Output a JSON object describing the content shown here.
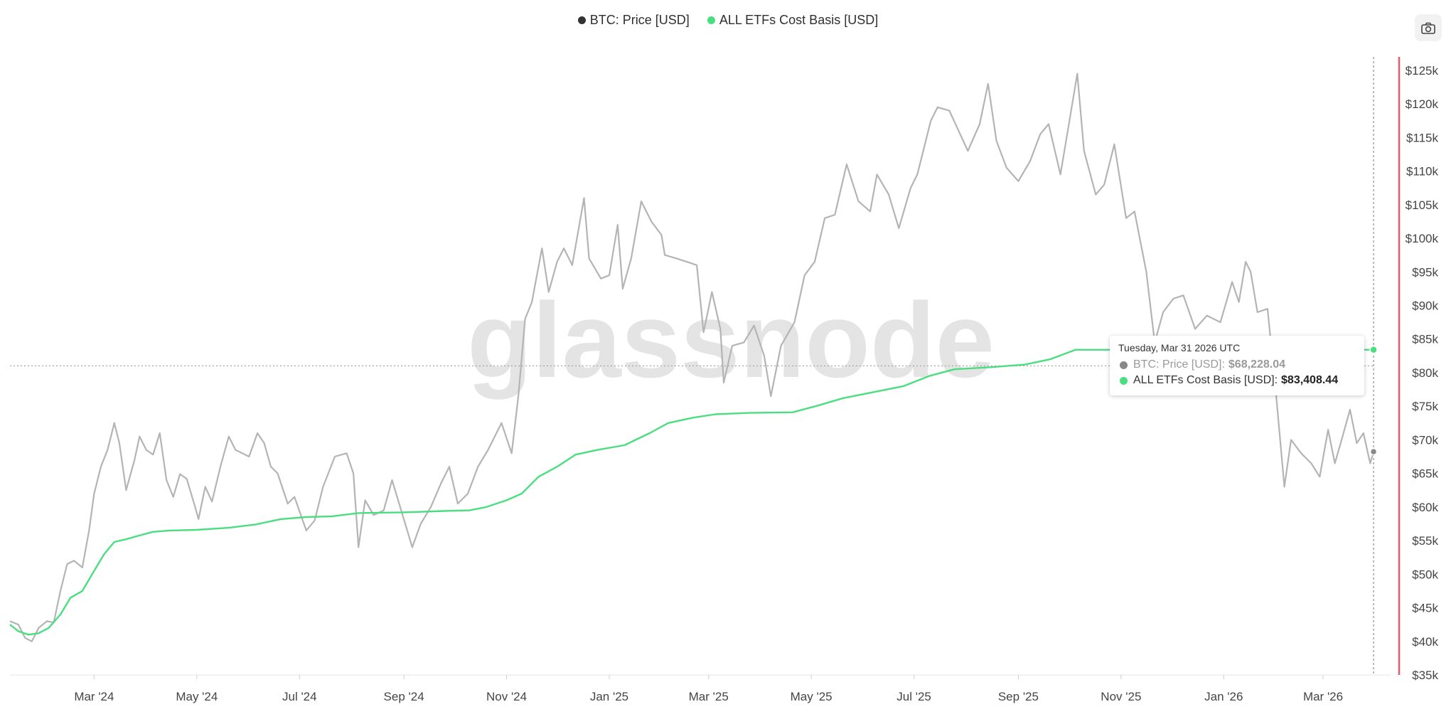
{
  "legend": [
    {
      "label": "BTC: Price [USD]",
      "color": "#333333"
    },
    {
      "label": "ALL ETFs Cost Basis [USD]",
      "color": "#4ade80"
    }
  ],
  "watermark": "glassnode",
  "camera_icon": "camera-icon",
  "tooltip": {
    "date": "Tuesday, Mar 31 2026 UTC",
    "rows": [
      {
        "label": "BTC: Price [USD]:",
        "value": "$68,228.04",
        "color": "#888888"
      },
      {
        "label": "ALL ETFs Cost Basis [USD]:",
        "value": "$83,408.44",
        "color": "#4ade80"
      }
    ]
  },
  "colors": {
    "price": "#b4b4b4",
    "cost_basis": "#4ade80",
    "crosshair": "#e8596e"
  },
  "chart_data": {
    "type": "line",
    "x_range": [
      "2024-01-11",
      "2026-04-08"
    ],
    "x_ticks": [
      {
        "date": "2024-03-01",
        "label": "Mar '24"
      },
      {
        "date": "2024-05-01",
        "label": "May '24"
      },
      {
        "date": "2024-07-01",
        "label": "Jul '24"
      },
      {
        "date": "2024-09-01",
        "label": "Sep '24"
      },
      {
        "date": "2024-11-01",
        "label": "Nov '24"
      },
      {
        "date": "2025-01-01",
        "label": "Jan '25"
      },
      {
        "date": "2025-03-01",
        "label": "Mar '25"
      },
      {
        "date": "2025-05-01",
        "label": "May '25"
      },
      {
        "date": "2025-07-01",
        "label": "Jul '25"
      },
      {
        "date": "2025-09-01",
        "label": "Sep '25"
      },
      {
        "date": "2025-11-01",
        "label": "Nov '25"
      },
      {
        "date": "2026-01-01",
        "label": "Jan '26"
      },
      {
        "date": "2026-03-01",
        "label": "Mar '26"
      }
    ],
    "ylim": [
      35000,
      127000
    ],
    "y_ticks": [
      {
        "value": 35000,
        "label": "$35k"
      },
      {
        "value": 40000,
        "label": "$40k"
      },
      {
        "value": 45000,
        "label": "$45k"
      },
      {
        "value": 50000,
        "label": "$50k"
      },
      {
        "value": 55000,
        "label": "$55k"
      },
      {
        "value": 60000,
        "label": "$60k"
      },
      {
        "value": 65000,
        "label": "$65k"
      },
      {
        "value": 70000,
        "label": "$70k"
      },
      {
        "value": 75000,
        "label": "$75k"
      },
      {
        "value": 80000,
        "label": "$80k"
      },
      {
        "value": 85000,
        "label": "$85k"
      },
      {
        "value": 90000,
        "label": "$90k"
      },
      {
        "value": 95000,
        "label": "$95k"
      },
      {
        "value": 100000,
        "label": "$100k"
      },
      {
        "value": 105000,
        "label": "$105k"
      },
      {
        "value": 110000,
        "label": "$110k"
      },
      {
        "value": 115000,
        "label": "$115k"
      },
      {
        "value": 120000,
        "label": "$120k"
      },
      {
        "value": 125000,
        "label": "$125k"
      }
    ],
    "crosshair_date": "2026-03-31",
    "series": [
      {
        "name": "BTC: Price [USD]",
        "points": [
          [
            "2024-01-11",
            43000
          ],
          [
            "2024-01-16",
            42500
          ],
          [
            "2024-01-20",
            40500
          ],
          [
            "2024-01-24",
            40000
          ],
          [
            "2024-01-28",
            42000
          ],
          [
            "2024-02-02",
            43000
          ],
          [
            "2024-02-06",
            42800
          ],
          [
            "2024-02-10",
            47500
          ],
          [
            "2024-02-14",
            51500
          ],
          [
            "2024-02-18",
            52000
          ],
          [
            "2024-02-23",
            51000
          ],
          [
            "2024-02-27",
            56500
          ],
          [
            "2024-03-01",
            62000
          ],
          [
            "2024-03-05",
            66000
          ],
          [
            "2024-03-09",
            68500
          ],
          [
            "2024-03-13",
            72500
          ],
          [
            "2024-03-16",
            69500
          ],
          [
            "2024-03-20",
            62500
          ],
          [
            "2024-03-25",
            67000
          ],
          [
            "2024-03-28",
            70500
          ],
          [
            "2024-04-01",
            68500
          ],
          [
            "2024-04-05",
            67800
          ],
          [
            "2024-04-09",
            71000
          ],
          [
            "2024-04-13",
            64000
          ],
          [
            "2024-04-17",
            61500
          ],
          [
            "2024-04-21",
            64900
          ],
          [
            "2024-04-25",
            64200
          ],
          [
            "2024-04-30",
            60000
          ],
          [
            "2024-05-02",
            58200
          ],
          [
            "2024-05-06",
            63000
          ],
          [
            "2024-05-10",
            60800
          ],
          [
            "2024-05-15",
            66000
          ],
          [
            "2024-05-20",
            70500
          ],
          [
            "2024-05-24",
            68500
          ],
          [
            "2024-05-28",
            68000
          ],
          [
            "2024-06-01",
            67500
          ],
          [
            "2024-06-06",
            71000
          ],
          [
            "2024-06-10",
            69500
          ],
          [
            "2024-06-14",
            66000
          ],
          [
            "2024-06-18",
            65000
          ],
          [
            "2024-06-24",
            60500
          ],
          [
            "2024-06-28",
            61500
          ],
          [
            "2024-07-05",
            56500
          ],
          [
            "2024-07-10",
            58000
          ],
          [
            "2024-07-15",
            63000
          ],
          [
            "2024-07-22",
            67500
          ],
          [
            "2024-07-29",
            68000
          ],
          [
            "2024-08-02",
            65000
          ],
          [
            "2024-08-05",
            54000
          ],
          [
            "2024-08-09",
            61000
          ],
          [
            "2024-08-14",
            58800
          ],
          [
            "2024-08-20",
            59500
          ],
          [
            "2024-08-25",
            64000
          ],
          [
            "2024-08-31",
            59000
          ],
          [
            "2024-09-06",
            54000
          ],
          [
            "2024-09-11",
            57500
          ],
          [
            "2024-09-17",
            60000
          ],
          [
            "2024-09-23",
            63500
          ],
          [
            "2024-09-28",
            66000
          ],
          [
            "2024-10-03",
            60500
          ],
          [
            "2024-10-09",
            62000
          ],
          [
            "2024-10-15",
            66000
          ],
          [
            "2024-10-21",
            68500
          ],
          [
            "2024-10-29",
            72500
          ],
          [
            "2024-11-04",
            68000
          ],
          [
            "2024-11-08",
            76500
          ],
          [
            "2024-11-12",
            88000
          ],
          [
            "2024-11-16",
            90500
          ],
          [
            "2024-11-22",
            98500
          ],
          [
            "2024-11-26",
            92000
          ],
          [
            "2024-12-01",
            96500
          ],
          [
            "2024-12-05",
            98500
          ],
          [
            "2024-12-10",
            96000
          ],
          [
            "2024-12-17",
            106000
          ],
          [
            "2024-12-20",
            97000
          ],
          [
            "2024-12-27",
            94000
          ],
          [
            "2025-01-01",
            94500
          ],
          [
            "2025-01-06",
            102000
          ],
          [
            "2025-01-09",
            92500
          ],
          [
            "2025-01-14",
            97000
          ],
          [
            "2025-01-20",
            105500
          ],
          [
            "2025-01-26",
            102500
          ],
          [
            "2025-02-01",
            100500
          ],
          [
            "2025-02-03",
            97500
          ],
          [
            "2025-02-10",
            97000
          ],
          [
            "2025-02-16",
            96500
          ],
          [
            "2025-02-22",
            96000
          ],
          [
            "2025-02-26",
            86000
          ],
          [
            "2025-03-03",
            92000
          ],
          [
            "2025-03-08",
            86500
          ],
          [
            "2025-03-10",
            78500
          ],
          [
            "2025-03-15",
            84000
          ],
          [
            "2025-03-22",
            84500
          ],
          [
            "2025-03-28",
            87000
          ],
          [
            "2025-04-03",
            82500
          ],
          [
            "2025-04-07",
            76500
          ],
          [
            "2025-04-13",
            84000
          ],
          [
            "2025-04-21",
            87500
          ],
          [
            "2025-04-27",
            94500
          ],
          [
            "2025-05-03",
            96500
          ],
          [
            "2025-05-09",
            103000
          ],
          [
            "2025-05-15",
            103500
          ],
          [
            "2025-05-22",
            111000
          ],
          [
            "2025-05-29",
            105500
          ],
          [
            "2025-06-05",
            104000
          ],
          [
            "2025-06-09",
            109500
          ],
          [
            "2025-06-16",
            106500
          ],
          [
            "2025-06-22",
            101500
          ],
          [
            "2025-06-29",
            107500
          ],
          [
            "2025-07-03",
            109500
          ],
          [
            "2025-07-11",
            117500
          ],
          [
            "2025-07-15",
            119500
          ],
          [
            "2025-07-22",
            119000
          ],
          [
            "2025-08-02",
            113000
          ],
          [
            "2025-08-09",
            117000
          ],
          [
            "2025-08-14",
            123000
          ],
          [
            "2025-08-19",
            114500
          ],
          [
            "2025-08-25",
            110500
          ],
          [
            "2025-09-01",
            108500
          ],
          [
            "2025-09-08",
            111500
          ],
          [
            "2025-09-14",
            115500
          ],
          [
            "2025-09-19",
            117000
          ],
          [
            "2025-09-26",
            109500
          ],
          [
            "2025-10-01",
            117000
          ],
          [
            "2025-10-06",
            124500
          ],
          [
            "2025-10-10",
            113000
          ],
          [
            "2025-10-17",
            106500
          ],
          [
            "2025-10-22",
            108000
          ],
          [
            "2025-10-28",
            114000
          ],
          [
            "2025-11-04",
            103000
          ],
          [
            "2025-11-09",
            104000
          ],
          [
            "2025-11-16",
            95000
          ],
          [
            "2025-11-21",
            84500
          ],
          [
            "2025-11-26",
            89000
          ],
          [
            "2025-12-02",
            91000
          ],
          [
            "2025-12-08",
            91500
          ],
          [
            "2025-12-15",
            86500
          ],
          [
            "2025-12-22",
            88500
          ],
          [
            "2025-12-30",
            87500
          ],
          [
            "2026-01-06",
            93500
          ],
          [
            "2026-01-10",
            90500
          ],
          [
            "2026-01-14",
            96500
          ],
          [
            "2026-01-17",
            95000
          ],
          [
            "2026-01-21",
            89000
          ],
          [
            "2026-01-27",
            89500
          ],
          [
            "2026-02-01",
            77000
          ],
          [
            "2026-02-06",
            63000
          ],
          [
            "2026-02-10",
            70000
          ],
          [
            "2026-02-16",
            68000
          ],
          [
            "2026-02-22",
            66500
          ],
          [
            "2026-02-27",
            64500
          ],
          [
            "2026-03-04",
            71500
          ],
          [
            "2026-03-08",
            66500
          ],
          [
            "2026-03-12",
            70000
          ],
          [
            "2026-03-17",
            74500
          ],
          [
            "2026-03-21",
            69500
          ],
          [
            "2026-03-25",
            71000
          ],
          [
            "2026-03-29",
            66500
          ],
          [
            "2026-03-31",
            68228.04
          ]
        ]
      },
      {
        "name": "ALL ETFs Cost Basis [USD]",
        "points": [
          [
            "2024-01-11",
            42500
          ],
          [
            "2024-01-16",
            41500
          ],
          [
            "2024-01-22",
            41000
          ],
          [
            "2024-01-28",
            41200
          ],
          [
            "2024-02-03",
            42000
          ],
          [
            "2024-02-10",
            44000
          ],
          [
            "2024-02-16",
            46500
          ],
          [
            "2024-02-23",
            47500
          ],
          [
            "2024-03-01",
            50500
          ],
          [
            "2024-03-07",
            53000
          ],
          [
            "2024-03-13",
            54800
          ],
          [
            "2024-03-20",
            55200
          ],
          [
            "2024-03-27",
            55700
          ],
          [
            "2024-04-05",
            56300
          ],
          [
            "2024-04-15",
            56500
          ],
          [
            "2024-05-01",
            56600
          ],
          [
            "2024-05-20",
            56900
          ],
          [
            "2024-06-05",
            57400
          ],
          [
            "2024-06-20",
            58200
          ],
          [
            "2024-07-05",
            58500
          ],
          [
            "2024-07-20",
            58600
          ],
          [
            "2024-08-05",
            59100
          ],
          [
            "2024-09-01",
            59200
          ],
          [
            "2024-09-25",
            59400
          ],
          [
            "2024-10-10",
            59500
          ],
          [
            "2024-10-20",
            60000
          ],
          [
            "2024-11-01",
            61000
          ],
          [
            "2024-11-10",
            62000
          ],
          [
            "2024-11-20",
            64500
          ],
          [
            "2024-12-01",
            66000
          ],
          [
            "2024-12-12",
            67800
          ],
          [
            "2024-12-25",
            68500
          ],
          [
            "2025-01-10",
            69200
          ],
          [
            "2025-01-25",
            71000
          ],
          [
            "2025-02-05",
            72500
          ],
          [
            "2025-02-20",
            73300
          ],
          [
            "2025-03-05",
            73800
          ],
          [
            "2025-03-25",
            74000
          ],
          [
            "2025-04-20",
            74100
          ],
          [
            "2025-05-05",
            75100
          ],
          [
            "2025-05-20",
            76200
          ],
          [
            "2025-06-05",
            77000
          ],
          [
            "2025-06-25",
            78000
          ],
          [
            "2025-07-10",
            79500
          ],
          [
            "2025-07-25",
            80500
          ],
          [
            "2025-08-15",
            80800
          ],
          [
            "2025-09-05",
            81200
          ],
          [
            "2025-09-20",
            82000
          ],
          [
            "2025-10-05",
            83400
          ],
          [
            "2025-11-05",
            83400
          ],
          [
            "2026-02-01",
            83400
          ],
          [
            "2026-03-31",
            83408.44
          ]
        ]
      }
    ]
  }
}
